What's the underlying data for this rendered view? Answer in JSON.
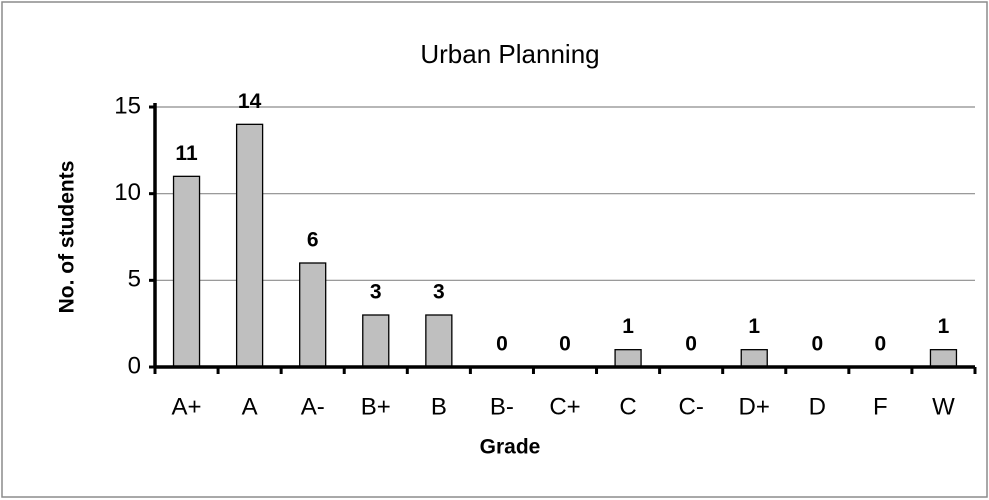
{
  "chart_data": {
    "type": "bar",
    "title": "Urban Planning",
    "x_label": "Grade",
    "y_label": "No. of students",
    "categories": [
      "A+",
      "A",
      "A-",
      "B+",
      "B",
      "B-",
      "C+",
      "C",
      "C-",
      "D+",
      "D",
      "F",
      "W"
    ],
    "values": [
      11,
      14,
      6,
      3,
      3,
      0,
      0,
      1,
      0,
      1,
      0,
      0,
      1
    ],
    "color": "#bfbfbf",
    "ylim": [
      0,
      15
    ],
    "yticks": [
      0,
      5,
      10,
      15
    ],
    "grid": true
  }
}
